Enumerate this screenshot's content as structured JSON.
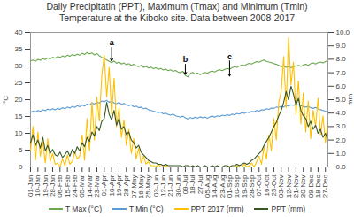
{
  "chart_data": {
    "type": "line",
    "title": "Daily Precipitatin (PPT), Maximum (Tmax) and Minimum (Tmin) Temperature at the Kiboko site. Data between 2008-2017",
    "ylabel": "°C",
    "y2label": "mm",
    "ylim": [
      0,
      40
    ],
    "yticks": [
      0,
      5,
      10,
      15,
      20,
      25,
      30,
      35,
      40
    ],
    "y2lim": [
      0,
      10
    ],
    "y2ticks": [
      {
        "value": 0,
        "label": "0.0"
      },
      {
        "value": 1,
        "label": "1.0"
      },
      {
        "value": 2,
        "label": "2.0"
      },
      {
        "value": 3,
        "label": "3.0"
      },
      {
        "value": 4,
        "label": "4.0"
      },
      {
        "value": 5,
        "label": "5.0"
      },
      {
        "value": 6,
        "label": "6.0"
      },
      {
        "value": 7,
        "label": "7.0"
      },
      {
        "value": 8,
        "label": "8.0"
      },
      {
        "value": 9,
        "label": "9.0"
      },
      {
        "value": 10,
        "label": "10.0"
      }
    ],
    "grid": false,
    "legend": "bottom",
    "categories": [
      "01-Jan",
      null,
      null,
      "10-Jan",
      null,
      null,
      "19-Jan",
      null,
      null,
      "28-Jan",
      null,
      null,
      "06-Feb",
      null,
      null,
      "15-Feb",
      null,
      null,
      "24-Feb",
      null,
      null,
      "05-Mar",
      null,
      null,
      "14-Mar",
      null,
      null,
      "23-Mar",
      null,
      null,
      "01-Apr",
      null,
      null,
      "10-Apr",
      null,
      null,
      "19-Apr",
      null,
      null,
      "28-Apr",
      null,
      null,
      "07-May",
      null,
      null,
      "16-May",
      null,
      null,
      "25-May",
      null,
      null,
      "03-Jun",
      null,
      null,
      "12-Jun",
      null,
      null,
      "21-Jun",
      null,
      null,
      "30-Jun",
      null,
      null,
      "09-Jul",
      null,
      null,
      "18-Jul",
      null,
      null,
      "27-Jul",
      null,
      null,
      "05-Aug",
      null,
      null,
      "14-Aug",
      null,
      null,
      "23-Aug",
      null,
      null,
      "01-Sep",
      null,
      null,
      "10-Sep",
      null,
      null,
      "19-Sep",
      null,
      null,
      "28-Sep",
      null,
      null,
      "07-Oct",
      null,
      null,
      "16-Oct",
      null,
      null,
      "25-Oct",
      null,
      null,
      "03-Nov",
      null,
      null,
      "12-Nov",
      null,
      null,
      "21-Nov",
      null,
      null,
      "30-Nov",
      null,
      null,
      "09-Dec",
      null,
      null,
      "18-Dec",
      null,
      null,
      "27-Dec",
      null
    ],
    "series": [
      {
        "name": "T Max (°C)",
        "color": "#6aa84f",
        "values": [
          31.5,
          31.8,
          31.4,
          32.0,
          31.7,
          32.2,
          31.9,
          32.4,
          32.1,
          32.6,
          32.3,
          32.8,
          32.5,
          33.0,
          32.7,
          33.2,
          32.9,
          33.4,
          33.1,
          33.5,
          33.2,
          33.8,
          33.4,
          34.0,
          33.6,
          33.9,
          33.3,
          33.7,
          33.0,
          32.6,
          32.2,
          31.8,
          31.4,
          31.0,
          31.5,
          30.8,
          31.2,
          30.6,
          30.9,
          30.4,
          30.7,
          30.2,
          30.5,
          30.0,
          29.8,
          30.2,
          29.6,
          29.9,
          29.4,
          29.7,
          29.2,
          29.5,
          29.0,
          29.3,
          28.8,
          29.1,
          28.6,
          28.9,
          28.4,
          28.7,
          28.2,
          28.0,
          28.4,
          27.2,
          26.8,
          27.8,
          28.1,
          27.6,
          27.9,
          27.4,
          27.8,
          28.1,
          27.9,
          28.3,
          28.5,
          28.2,
          28.7,
          28.9,
          28.6,
          29.0,
          29.3,
          29.1,
          29.5,
          29.8,
          29.6,
          30.0,
          30.3,
          30.1,
          30.5,
          30.8,
          30.6,
          31.0,
          31.3,
          31.1,
          31.5,
          31.8,
          31.4,
          31.2,
          31.0,
          30.7,
          30.5,
          30.2,
          29.8,
          30.1,
          29.6,
          29.9,
          29.5,
          29.8,
          30.0,
          30.2,
          29.9,
          30.3,
          30.5,
          30.2,
          30.7,
          30.9,
          30.6,
          31.0,
          31.2,
          30.9,
          31.3,
          31.5
        ]
      },
      {
        "name": "T Min (°C)",
        "color": "#5b9bd5",
        "values": [
          16.2,
          16.6,
          16.3,
          16.8,
          16.5,
          17.0,
          16.7,
          17.2,
          16.9,
          17.3,
          17.0,
          17.4,
          17.1,
          17.6,
          17.3,
          17.8,
          17.5,
          18.0,
          17.7,
          18.2,
          17.9,
          18.4,
          18.1,
          18.7,
          18.4,
          19.0,
          18.7,
          19.3,
          19.0,
          19.6,
          19.4,
          19.8,
          19.2,
          19.6,
          19.0,
          18.8,
          19.2,
          18.6,
          18.9,
          18.4,
          18.2,
          18.5,
          17.9,
          18.1,
          17.6,
          17.8,
          17.3,
          17.5,
          17.0,
          16.8,
          16.6,
          16.4,
          16.1,
          16.3,
          15.8,
          16.0,
          15.6,
          15.4,
          15.7,
          15.2,
          15.0,
          14.8,
          15.1,
          14.6,
          14.3,
          14.7,
          14.4,
          14.8,
          14.5,
          14.9,
          14.6,
          14.8,
          14.5,
          14.9,
          15.1,
          14.8,
          15.2,
          15.0,
          15.4,
          15.2,
          15.5,
          15.3,
          15.7,
          15.5,
          15.9,
          15.7,
          16.1,
          15.9,
          16.3,
          16.1,
          16.5,
          16.4,
          16.8,
          16.6,
          17.0,
          16.9,
          17.3,
          17.1,
          17.5,
          17.4,
          17.8,
          17.7,
          18.0,
          17.8,
          18.3,
          18.1,
          18.5,
          18.3,
          18.6,
          18.4,
          18.2,
          18.0,
          17.8,
          18.0,
          17.6,
          17.4,
          17.7,
          17.3,
          17.0,
          16.8,
          16.6,
          16.4
        ]
      },
      {
        "name": "PPT 2017 (mm)",
        "color": "#ffc000",
        "axis": "y2",
        "values": [
          1.2,
          3.0,
          0.5,
          2.6,
          0.8,
          1.9,
          0.3,
          2.1,
          0.4,
          1.0,
          0.2,
          0.3,
          0.0,
          0.6,
          0.1,
          0.9,
          0.2,
          0.4,
          1.1,
          0.6,
          0.8,
          2.4,
          0.5,
          3.6,
          1.2,
          4.8,
          2.0,
          5.2,
          3.4,
          6.8,
          8.3,
          5.2,
          7.4,
          3.9,
          6.6,
          3.0,
          4.4,
          2.2,
          3.5,
          1.6,
          2.8,
          1.0,
          2.1,
          0.6,
          1.4,
          0.3,
          0.8,
          0.2,
          0.4,
          0.1,
          0.1,
          0.0,
          0.2,
          0.0,
          0.0,
          0.1,
          0.0,
          0.0,
          0.0,
          0.0,
          0.0,
          0.0,
          0.0,
          0.0,
          0.0,
          0.0,
          0.0,
          0.0,
          0.0,
          0.0,
          0.0,
          0.0,
          0.0,
          0.0,
          0.0,
          0.0,
          0.0,
          0.0,
          0.0,
          0.0,
          0.0,
          0.0,
          0.0,
          0.0,
          0.1,
          0.0,
          0.0,
          0.2,
          0.0,
          0.1,
          0.3,
          0.0,
          0.4,
          0.8,
          0.2,
          1.5,
          0.6,
          2.4,
          1.2,
          3.6,
          2.0,
          4.8,
          5.6,
          8.2,
          4.4,
          9.6,
          6.1,
          7.8,
          3.9,
          6.4,
          3.2,
          5.5,
          2.6,
          4.9,
          2.1,
          4.2,
          3.0,
          5.1,
          2.4,
          3.8,
          1.8,
          3.3
        ]
      },
      {
        "name": "PPT (mm)",
        "color": "#375623",
        "axis": "y2",
        "values": [
          1.8,
          2.4,
          1.6,
          2.0,
          1.4,
          2.2,
          1.2,
          1.6,
          1.0,
          1.3,
          0.9,
          0.8,
          1.1,
          0.7,
          0.9,
          1.2,
          0.8,
          1.3,
          1.0,
          1.5,
          1.2,
          1.8,
          1.5,
          2.2,
          1.9,
          2.6,
          2.3,
          3.0,
          2.7,
          3.4,
          3.6,
          4.8,
          3.9,
          3.5,
          4.2,
          3.1,
          3.6,
          2.8,
          3.0,
          2.4,
          2.6,
          2.0,
          1.8,
          1.4,
          1.6,
          1.1,
          0.9,
          0.7,
          0.5,
          0.4,
          0.3,
          0.3,
          0.2,
          0.2,
          0.1,
          0.2,
          0.1,
          0.1,
          0.1,
          0.1,
          0.1,
          0.1,
          0.0,
          0.1,
          0.1,
          0.0,
          0.1,
          0.0,
          0.1,
          0.0,
          0.0,
          0.1,
          0.0,
          0.0,
          0.1,
          0.0,
          0.1,
          0.0,
          0.0,
          0.1,
          0.1,
          0.0,
          0.1,
          0.1,
          0.2,
          0.1,
          0.2,
          0.3,
          0.2,
          0.3,
          0.5,
          0.6,
          0.8,
          1.0,
          1.2,
          1.6,
          1.9,
          2.2,
          2.6,
          3.0,
          3.3,
          3.8,
          4.2,
          4.8,
          5.6,
          5.0,
          6.0,
          5.4,
          4.6,
          5.1,
          4.2,
          3.8,
          3.6,
          3.0,
          3.4,
          2.8,
          3.1,
          2.5,
          2.8,
          2.2,
          2.5,
          2.0
        ]
      }
    ],
    "annotations": [
      {
        "text": "a",
        "x": "10-Apr",
        "y": 35.5,
        "y_end": 31.5
      },
      {
        "text": "b",
        "x": "09-Jul",
        "y": 30.5,
        "y_end": 27.5
      },
      {
        "text": "c",
        "x": "01-Sep",
        "y": 31.5,
        "y_end": 27.0
      }
    ]
  }
}
